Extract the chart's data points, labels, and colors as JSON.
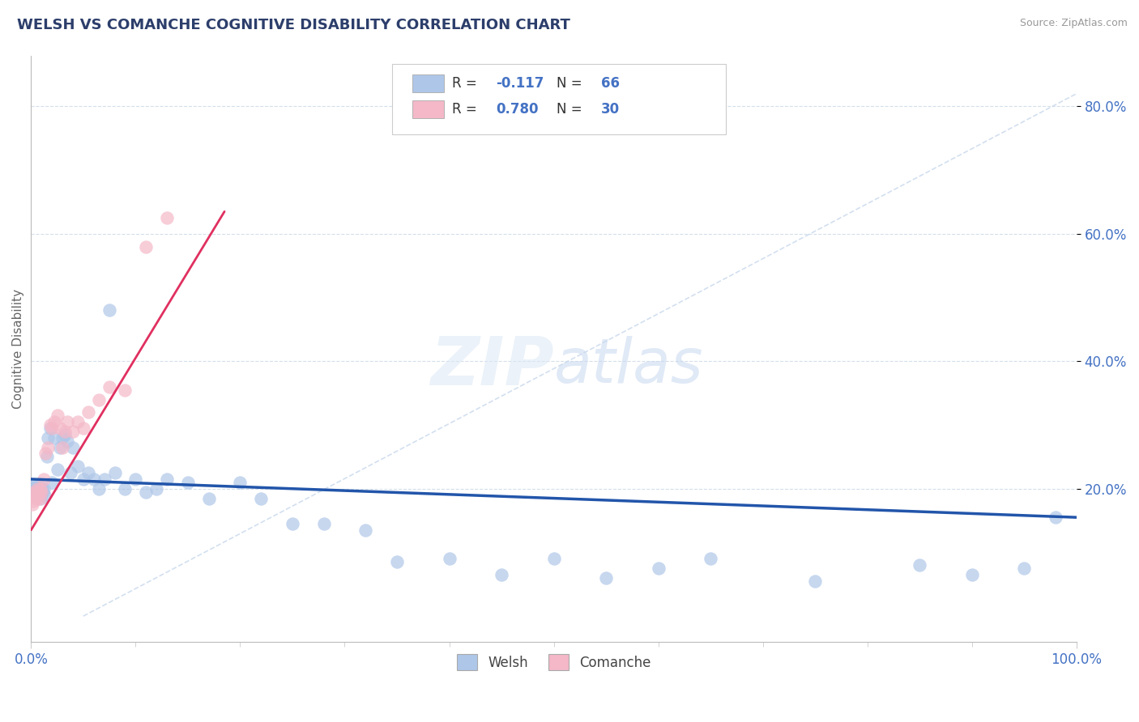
{
  "title": "WELSH VS COMANCHE COGNITIVE DISABILITY CORRELATION CHART",
  "source": "Source: ZipAtlas.com",
  "ylabel": "Cognitive Disability",
  "xlim": [
    0.0,
    1.0
  ],
  "ylim": [
    -0.04,
    0.88
  ],
  "welsh_color": "#aec6e8",
  "welsh_edge_color": "#aec6e8",
  "welsh_line_color": "#2255aa",
  "comanche_color": "#f4b8c8",
  "comanche_edge_color": "#f4b8c8",
  "comanche_line_color": "#e03060",
  "diagonal_color": "#c8d8ec",
  "background_color": "#ffffff",
  "grid_color": "#d0dce8",
  "ytick_values": [
    0.2,
    0.4,
    0.6,
    0.8
  ],
  "ytick_labels": [
    "20.0%",
    "40.0%",
    "60.0%",
    "80.0%"
  ],
  "title_color": "#2c3e6b",
  "axis_label_color": "#666666",
  "tick_color": "#4472c4",
  "legend_color": "#4472c4",
  "welsh_R": -0.117,
  "welsh_N": 66,
  "comanche_R": 0.78,
  "comanche_N": 30,
  "welsh_x": [
    0.001,
    0.002,
    0.002,
    0.003,
    0.003,
    0.004,
    0.004,
    0.005,
    0.005,
    0.006,
    0.006,
    0.007,
    0.007,
    0.008,
    0.008,
    0.009,
    0.009,
    0.01,
    0.01,
    0.011,
    0.012,
    0.013,
    0.015,
    0.016,
    0.018,
    0.02,
    0.022,
    0.025,
    0.028,
    0.03,
    0.032,
    0.035,
    0.038,
    0.04,
    0.045,
    0.05,
    0.055,
    0.06,
    0.065,
    0.07,
    0.075,
    0.08,
    0.09,
    0.1,
    0.11,
    0.12,
    0.13,
    0.15,
    0.17,
    0.2,
    0.22,
    0.25,
    0.28,
    0.32,
    0.35,
    0.4,
    0.45,
    0.5,
    0.55,
    0.6,
    0.65,
    0.75,
    0.85,
    0.9,
    0.95,
    0.98
  ],
  "welsh_y": [
    0.195,
    0.2,
    0.195,
    0.205,
    0.19,
    0.2,
    0.195,
    0.205,
    0.195,
    0.2,
    0.195,
    0.2,
    0.19,
    0.195,
    0.205,
    0.195,
    0.185,
    0.195,
    0.2,
    0.195,
    0.2,
    0.19,
    0.25,
    0.28,
    0.295,
    0.21,
    0.28,
    0.23,
    0.265,
    0.28,
    0.285,
    0.275,
    0.225,
    0.265,
    0.235,
    0.215,
    0.225,
    0.215,
    0.2,
    0.215,
    0.48,
    0.225,
    0.2,
    0.215,
    0.195,
    0.2,
    0.215,
    0.21,
    0.185,
    0.21,
    0.185,
    0.145,
    0.145,
    0.135,
    0.085,
    0.09,
    0.065,
    0.09,
    0.06,
    0.075,
    0.09,
    0.055,
    0.08,
    0.065,
    0.075,
    0.155
  ],
  "comanche_x": [
    0.001,
    0.002,
    0.003,
    0.004,
    0.005,
    0.006,
    0.007,
    0.008,
    0.009,
    0.01,
    0.012,
    0.014,
    0.016,
    0.018,
    0.02,
    0.022,
    0.025,
    0.028,
    0.03,
    0.032,
    0.035,
    0.04,
    0.045,
    0.05,
    0.055,
    0.065,
    0.075,
    0.09,
    0.11,
    0.13
  ],
  "comanche_y": [
    0.175,
    0.18,
    0.195,
    0.19,
    0.185,
    0.2,
    0.195,
    0.185,
    0.2,
    0.195,
    0.215,
    0.255,
    0.265,
    0.3,
    0.295,
    0.305,
    0.315,
    0.295,
    0.265,
    0.29,
    0.305,
    0.29,
    0.305,
    0.295,
    0.32,
    0.34,
    0.36,
    0.355,
    0.58,
    0.625
  ]
}
